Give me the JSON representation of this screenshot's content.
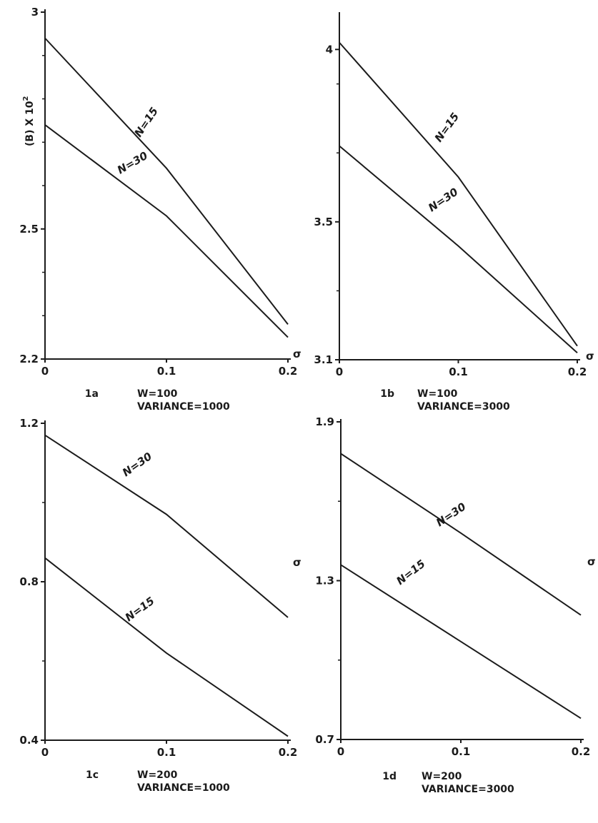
{
  "figure": {
    "ylabel": "(B) X 10",
    "ylabel_exponent": "2"
  },
  "chart_data": [
    {
      "type": "line",
      "id": "1a",
      "params": [
        "W=100",
        "VARIANCE=1000"
      ],
      "xlabel": "σ",
      "x": [
        0,
        0.1,
        0.2
      ],
      "xticks": [
        "0",
        "0.1",
        "0.2"
      ],
      "xlim": [
        0,
        0.2
      ],
      "ylim": [
        2.2,
        3.0
      ],
      "yticks": [
        {
          "value": 2.2,
          "label": "2.2"
        },
        {
          "value": 2.5,
          "label": "2.5"
        },
        {
          "value": 3.0,
          "label": "3"
        }
      ],
      "yminor": [
        2.3,
        2.4,
        2.6,
        2.7,
        2.8,
        2.9
      ],
      "series": [
        {
          "name": "N=15",
          "values": [
            2.94,
            2.64,
            2.28
          ]
        },
        {
          "name": "N=30",
          "values": [
            2.74,
            2.53,
            2.25
          ]
        }
      ]
    },
    {
      "type": "line",
      "id": "1b",
      "params": [
        "W=100",
        "VARIANCE=3000"
      ],
      "xlabel": "σ",
      "x": [
        0,
        0.1,
        0.2
      ],
      "xticks": [
        "0",
        "0.1",
        "0.2"
      ],
      "xlim": [
        0,
        0.2
      ],
      "ylim": [
        3.1,
        4.1
      ],
      "yticks": [
        {
          "value": 3.1,
          "label": "3.1"
        },
        {
          "value": 3.5,
          "label": "3.5"
        },
        {
          "value": 4.0,
          "label": "4"
        }
      ],
      "yminor": [
        3.3,
        3.7,
        3.9
      ],
      "series": [
        {
          "name": "N=15",
          "values": [
            4.02,
            3.63,
            3.14
          ]
        },
        {
          "name": "N=30",
          "values": [
            3.72,
            3.43,
            3.12
          ]
        }
      ]
    },
    {
      "type": "line",
      "id": "1c",
      "params": [
        "W=200",
        "VARIANCE=1000"
      ],
      "xlabel": "σ",
      "x": [
        0,
        0.1,
        0.2
      ],
      "xticks": [
        "0",
        "0.1",
        "0.2"
      ],
      "xlim": [
        0,
        0.2
      ],
      "ylim": [
        0.4,
        1.2
      ],
      "yticks": [
        {
          "value": 0.4,
          "label": "0.4"
        },
        {
          "value": 0.8,
          "label": "0.8"
        },
        {
          "value": 1.2,
          "label": "1.2"
        }
      ],
      "yminor": [
        0.6,
        1.0
      ],
      "series": [
        {
          "name": "N=30",
          "values": [
            1.17,
            0.97,
            0.71
          ]
        },
        {
          "name": "N=15",
          "values": [
            0.86,
            0.62,
            0.41
          ]
        }
      ]
    },
    {
      "type": "line",
      "id": "1d",
      "params": [
        "W=200",
        "VARIANCE=3000"
      ],
      "xlabel": "σ",
      "x": [
        0,
        0.1,
        0.2
      ],
      "xticks": [
        "0",
        "0.1",
        "0.2"
      ],
      "xlim": [
        0,
        0.2
      ],
      "ylim": [
        0.7,
        1.9
      ],
      "yticks": [
        {
          "value": 0.7,
          "label": "0.7"
        },
        {
          "value": 1.3,
          "label": "1.3"
        },
        {
          "value": 1.9,
          "label": "1.9"
        }
      ],
      "yminor": [
        1.0,
        1.6
      ],
      "series": [
        {
          "name": "N=30",
          "values": [
            1.78,
            1.48,
            1.17
          ]
        },
        {
          "name": "N=15",
          "values": [
            1.36,
            1.07,
            0.78
          ]
        }
      ]
    }
  ]
}
